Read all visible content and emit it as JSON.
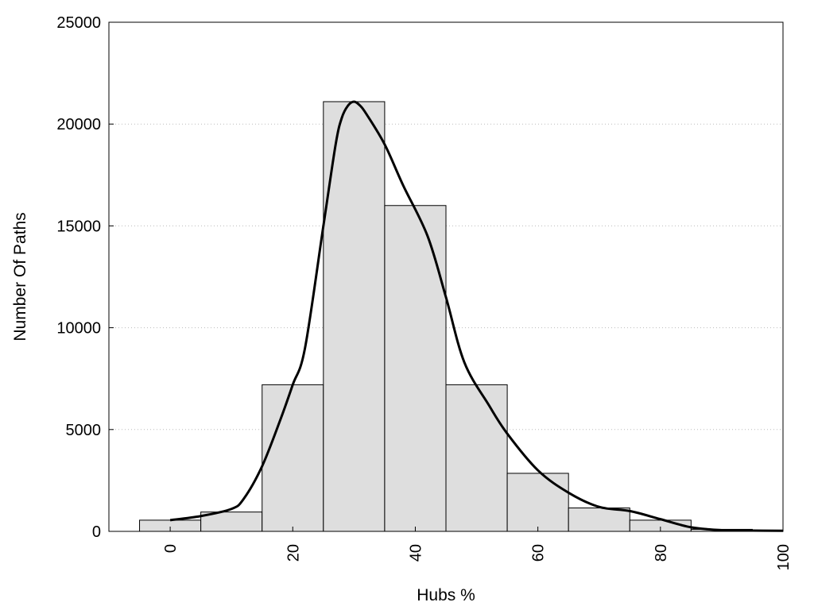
{
  "chart_data": {
    "type": "bar",
    "title": "",
    "xlabel": "Hubs %",
    "ylabel": "Number Of Paths",
    "xlim": [
      -10,
      100
    ],
    "ylim": [
      0,
      25000
    ],
    "bin_width": 10,
    "x_ticks": [
      0,
      20,
      40,
      60,
      80,
      100
    ],
    "y_ticks": [
      0,
      5000,
      10000,
      15000,
      20000,
      25000
    ],
    "grid": "horizontal dotted",
    "legend": "none",
    "colors": {
      "bar_fill": "#dedede",
      "bar_stroke": "#000000",
      "curve": "#000000",
      "grid": "#bbbbbb"
    },
    "bars": [
      {
        "x": 0,
        "value": 550
      },
      {
        "x": 10,
        "value": 950
      },
      {
        "x": 20,
        "value": 7200
      },
      {
        "x": 30,
        "value": 21100
      },
      {
        "x": 40,
        "value": 16000
      },
      {
        "x": 50,
        "value": 7200
      },
      {
        "x": 60,
        "value": 2850
      },
      {
        "x": 70,
        "value": 1150
      },
      {
        "x": 80,
        "value": 550
      },
      {
        "x": 90,
        "value": 100
      }
    ],
    "density_curve": {
      "x": [
        0,
        5,
        10,
        12,
        15,
        18,
        20,
        22,
        25,
        27,
        28,
        29,
        30,
        31,
        32,
        35,
        38,
        42,
        45,
        48,
        52,
        55,
        60,
        65,
        70,
        75,
        80,
        85,
        90,
        95,
        100
      ],
      "y": [
        550,
        750,
        1100,
        1600,
        3200,
        5500,
        7200,
        9000,
        15000,
        19000,
        20300,
        20900,
        21100,
        20900,
        20500,
        19000,
        17000,
        14500,
        11500,
        8300,
        6200,
        4800,
        3000,
        1900,
        1200,
        1000,
        600,
        200,
        60,
        40,
        30
      ]
    }
  }
}
